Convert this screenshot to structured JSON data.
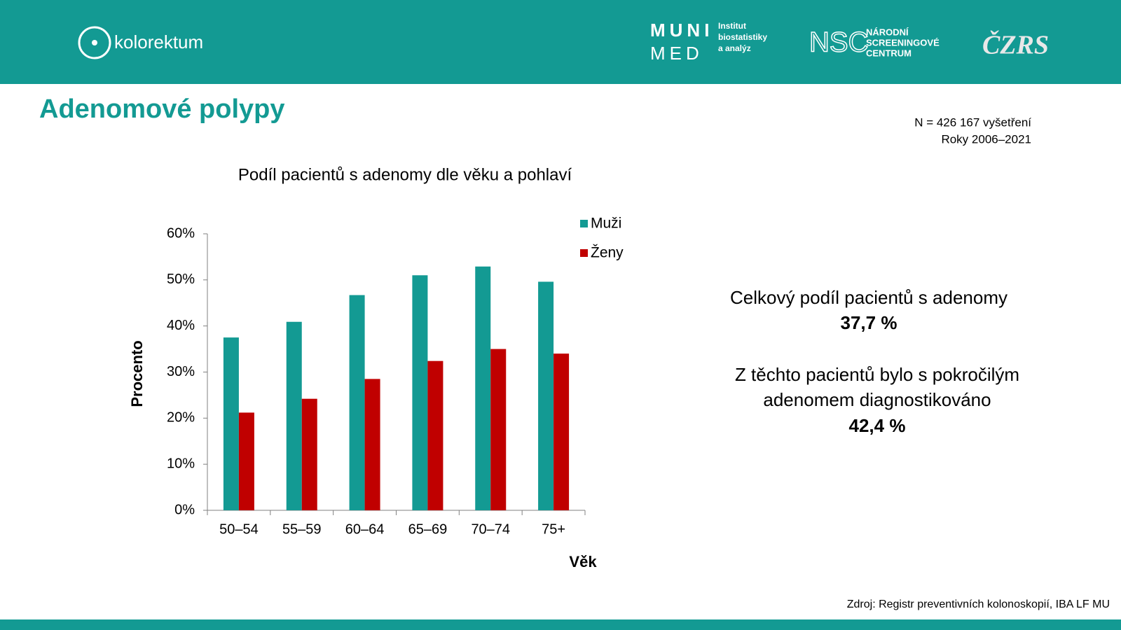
{
  "header": {
    "logo": "kolorektum",
    "muni": "MUNI",
    "med": "MED",
    "institute": [
      "Institut",
      "biostatistiky",
      "a analýz"
    ],
    "nsc": "NSC",
    "nsc_name": [
      "NÁRODNÍ",
      "SCREENINGOVÉ",
      "CENTRUM"
    ],
    "czrs": "ČZRS"
  },
  "title": "Adenomové polypy",
  "note": [
    "N = 426 167 vyšetření",
    "Roky 2006–2021"
  ],
  "chart_data": {
    "type": "bar",
    "title": "Podíl pacientů s adenomy dle věku a pohlaví",
    "x_label": "Věk",
    "y_label": "Procento",
    "categories": [
      "50–54",
      "55–59",
      "60–64",
      "65–69",
      "70–74",
      "75+"
    ],
    "series": [
      {
        "name": "Muži",
        "color": "#139a93",
        "values": [
          37.5,
          40.9,
          46.7,
          51.0,
          52.9,
          49.6
        ]
      },
      {
        "name": "Ženy",
        "color": "#c00000",
        "values": [
          21.2,
          24.2,
          28.5,
          32.4,
          35.0,
          34.0
        ]
      }
    ],
    "ylim": [
      0,
      60
    ],
    "yticks": [
      {
        "value": 0,
        "label": "0%"
      },
      {
        "value": 10,
        "label": "10%"
      },
      {
        "value": 20,
        "label": "20%"
      },
      {
        "value": 30,
        "label": "30%"
      },
      {
        "value": 40,
        "label": "40%"
      },
      {
        "value": 50,
        "label": "50%"
      },
      {
        "value": 60,
        "label": "60%"
      }
    ],
    "grid": false,
    "legend": "top-right"
  },
  "summary": {
    "line1": "Celkový podíl pacientů s adenomy",
    "value1": "37,7 %",
    "line2": "Z těchto pacientů bylo s pokročilým",
    "line3": "adenomem diagnostikováno",
    "value2": "42,4 %"
  },
  "source": "Zdroj: Registr preventivních kolonoskopií, IBA LF MU"
}
